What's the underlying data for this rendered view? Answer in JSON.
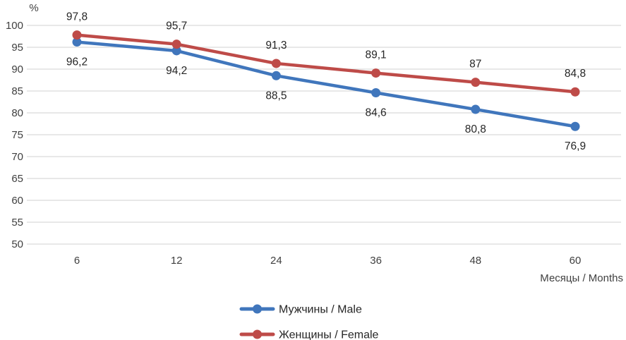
{
  "chart_data": {
    "type": "line",
    "title": "",
    "ylabel": "%",
    "xlabel": "Месяцы / Months",
    "categories": [
      "6",
      "12",
      "24",
      "36",
      "48",
      "60"
    ],
    "ylim": [
      50,
      100
    ],
    "ytick_step": 5,
    "yticks": [
      "100",
      "95",
      "90",
      "85",
      "80",
      "75",
      "70",
      "65",
      "60",
      "55",
      "50"
    ],
    "grid": true,
    "legend_position": "bottom-center",
    "series": [
      {
        "key": "male",
        "name": "Мужчины / Male",
        "color": "#4076BC",
        "values": [
          96.2,
          94.2,
          88.5,
          84.6,
          80.8,
          76.9
        ],
        "point_labels": [
          "96,2",
          "94,2",
          "88,5",
          "84,6",
          "80,8",
          "76,9"
        ],
        "label_side": "below"
      },
      {
        "key": "female",
        "name": "Женщины / Female",
        "color": "#BE4B48",
        "values": [
          97.8,
          95.7,
          91.3,
          89.1,
          87.0,
          84.8
        ],
        "point_labels": [
          "97,8",
          "95,7",
          "91,3",
          "89,1",
          "87",
          "84,8"
        ],
        "label_side": "above"
      }
    ],
    "colors": {
      "gridline": "#D9D9D9",
      "tick_text": "#404040",
      "label_text": "#262626"
    }
  }
}
